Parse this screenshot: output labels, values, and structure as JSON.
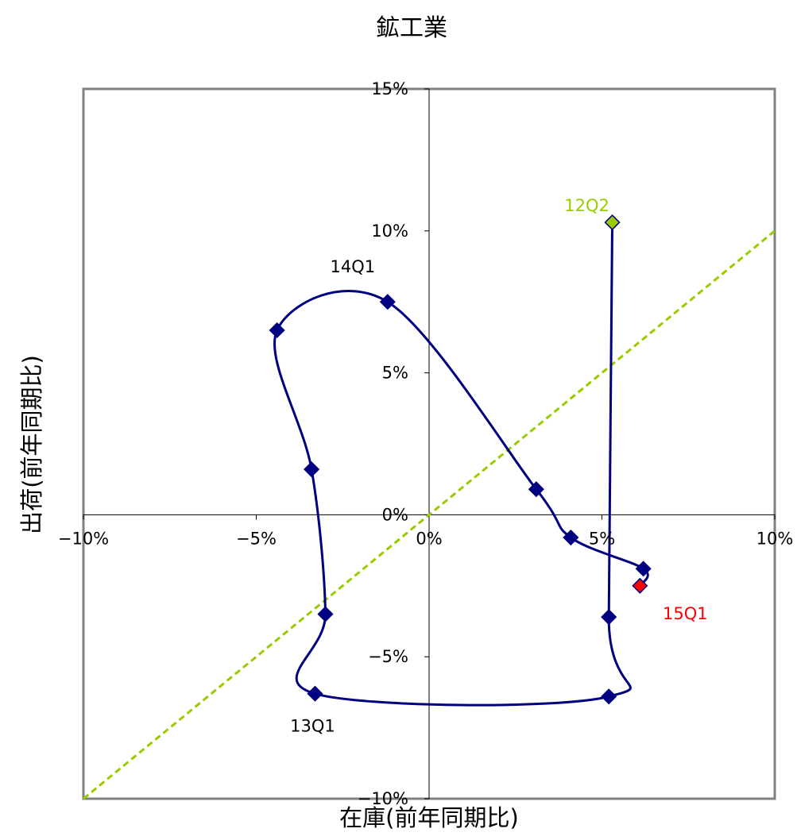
{
  "chart_data": {
    "type": "scatter",
    "title": "鉱工業",
    "xlabel": "在庫(前年同期比)",
    "ylabel": "出荷(前年同期比)",
    "xlim": [
      -10,
      10
    ],
    "ylim": [
      -10,
      15
    ],
    "x_ticks": [
      {
        "value": -10,
        "label": "−10%"
      },
      {
        "value": -5,
        "label": "−5%"
      },
      {
        "value": 0,
        "label": "0%"
      },
      {
        "value": 5,
        "label": "5%"
      },
      {
        "value": 10,
        "label": "10%"
      }
    ],
    "y_ticks": [
      {
        "value": 15,
        "label": "15%"
      },
      {
        "value": 10,
        "label": "10%"
      },
      {
        "value": 5,
        "label": "5%"
      },
      {
        "value": 0,
        "label": "0%"
      },
      {
        "value": -5,
        "label": "−5%"
      },
      {
        "value": -10,
        "label": "−10%"
      }
    ],
    "grid": false,
    "legend": "none",
    "series": [
      {
        "color": "#000080",
        "points": [
          {
            "x": 5.3,
            "y": 10.3
          },
          {
            "x": 5.2,
            "y": -3.6
          },
          {
            "x": 5.2,
            "y": -6.4
          },
          {
            "x": -3.3,
            "y": -6.3
          },
          {
            "x": -3.0,
            "y": -3.5
          },
          {
            "x": -3.4,
            "y": 1.6
          },
          {
            "x": -4.4,
            "y": 6.5
          },
          {
            "x": -1.2,
            "y": 7.5
          },
          {
            "x": 3.1,
            "y": 0.9
          },
          {
            "x": 4.1,
            "y": -0.8
          },
          {
            "x": 6.2,
            "y": -1.9
          },
          {
            "x": 6.1,
            "y": -2.5
          }
        ]
      }
    ],
    "reference_line": {
      "color": "#99cc00",
      "from": {
        "x": -10,
        "y": -10
      },
      "to": {
        "x": 10,
        "y": 10
      }
    },
    "point_colors": {
      "first": "#99cc00",
      "last": "#ff0000",
      "default": "#000080"
    },
    "annotations": [
      {
        "text": "12Q2",
        "point_index": 0,
        "color": "#99cc00"
      },
      {
        "text": "13Q1",
        "point_index": 3,
        "color": "#000000"
      },
      {
        "text": "14Q1",
        "point_index": 7,
        "color": "#000000"
      },
      {
        "text": "15Q1",
        "point_index": 11,
        "color": "#ff0000"
      }
    ]
  }
}
